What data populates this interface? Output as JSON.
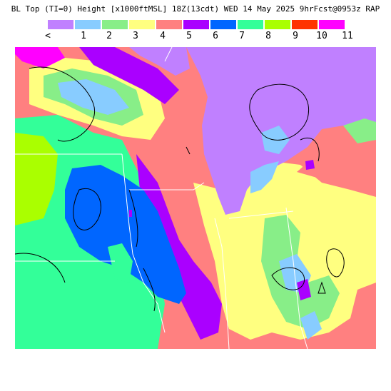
{
  "title": "BL Top (TI=0) Height [x1000ftMSL] 18Z(13cdt) WED 14 May 2025 9hrFcst@0953z RAP",
  "legend": {
    "colors": [
      "#c080ff",
      "#88ccff",
      "#88ee88",
      "#ffff80",
      "#ff8080",
      "#aa00ff",
      "#0066ff",
      "#33ff99",
      "#aaff00",
      "#ff3300",
      "#ff00ff"
    ],
    "labels": [
      "<",
      "1",
      "2",
      "3",
      "4",
      "5",
      "6",
      "7",
      "8",
      "9",
      "10",
      "11"
    ]
  },
  "map": {
    "water_color": "#c080ff",
    "boundary_color": "#ffffff",
    "contour_color": "#000000"
  }
}
